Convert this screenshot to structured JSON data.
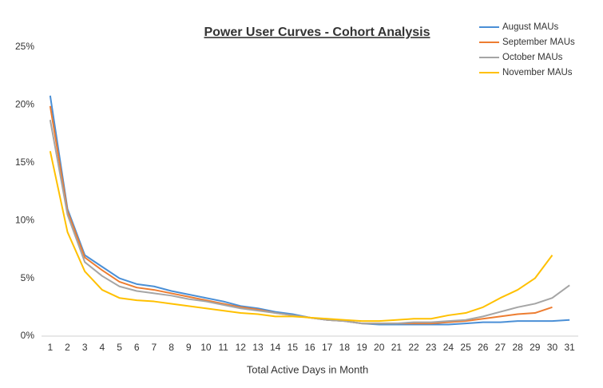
{
  "chart_data": {
    "type": "line",
    "title": "Power User Curves - Cohort Analysis",
    "x_label": "Total Active Days in Month",
    "x": [
      1,
      2,
      3,
      4,
      5,
      6,
      7,
      8,
      9,
      10,
      11,
      12,
      13,
      14,
      15,
      16,
      17,
      18,
      19,
      20,
      21,
      22,
      23,
      24,
      25,
      26,
      27,
      28,
      29,
      30,
      31
    ],
    "xlim": [
      0.5,
      31.5
    ],
    "xticks": [
      1,
      2,
      3,
      4,
      5,
      6,
      7,
      8,
      9,
      10,
      11,
      12,
      13,
      14,
      15,
      16,
      17,
      18,
      19,
      20,
      21,
      22,
      23,
      24,
      25,
      26,
      27,
      28,
      29,
      30,
      31
    ],
    "ylim": [
      0,
      25
    ],
    "yticks": [
      {
        "value": 0,
        "label": "0%"
      },
      {
        "value": 5,
        "label": "5%"
      },
      {
        "value": 10,
        "label": "10%"
      },
      {
        "value": 15,
        "label": "15%"
      },
      {
        "value": 20,
        "label": "20%"
      },
      {
        "value": 25,
        "label": "25%"
      }
    ],
    "grid": false,
    "legend": "top-right",
    "series": [
      {
        "name": "August MAUs",
        "color": "#4a8fd6",
        "values": [
          20.8,
          11,
          7,
          6,
          5,
          4.5,
          4.3,
          3.9,
          3.6,
          3.3,
          3,
          2.6,
          2.4,
          2.1,
          1.9,
          1.6,
          1.4,
          1.3,
          1.1,
          1,
          1,
          1,
          1,
          1,
          1.1,
          1.2,
          1.2,
          1.3,
          1.3,
          1.3,
          1.4
        ]
      },
      {
        "name": "September MAUs",
        "color": "#ed7d31",
        "values": [
          19.9,
          10.8,
          6.8,
          5.7,
          4.7,
          4.2,
          4,
          3.7,
          3.4,
          3.1,
          2.8,
          2.5,
          2.3,
          2,
          1.8,
          1.6,
          1.4,
          1.3,
          1.1,
          1.1,
          1.1,
          1.1,
          1.1,
          1.2,
          1.3,
          1.5,
          1.7,
          1.9,
          2,
          2.5,
          null
        ]
      },
      {
        "name": "October MAUs",
        "color": "#a5a5a5",
        "values": [
          18.7,
          10.5,
          6.4,
          5.2,
          4.3,
          3.9,
          3.7,
          3.5,
          3.2,
          3,
          2.7,
          2.4,
          2.2,
          2,
          1.8,
          1.6,
          1.4,
          1.3,
          1.1,
          1.1,
          1.1,
          1.2,
          1.2,
          1.3,
          1.4,
          1.7,
          2.1,
          2.5,
          2.8,
          3.3,
          4.4
        ]
      },
      {
        "name": "November MAUs",
        "color": "#ffc000",
        "values": [
          16,
          9,
          5.6,
          4,
          3.3,
          3.1,
          3,
          2.8,
          2.6,
          2.4,
          2.2,
          2,
          1.9,
          1.7,
          1.7,
          1.6,
          1.5,
          1.4,
          1.3,
          1.3,
          1.4,
          1.5,
          1.5,
          1.8,
          2,
          2.5,
          3.3,
          4,
          5,
          7,
          null
        ]
      }
    ]
  }
}
